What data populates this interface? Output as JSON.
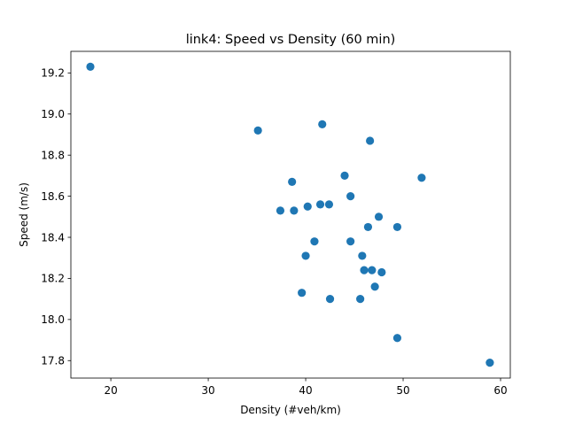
{
  "chart_data": {
    "type": "scatter",
    "title": "link4: Speed vs Density (60 min)",
    "xlabel": "Density (#veh/km)",
    "ylabel": "Speed (m/s)",
    "xlim": [
      15.9,
      61.0
    ],
    "ylim": [
      17.715,
      19.305
    ],
    "xticks": [
      20,
      30,
      40,
      50,
      60
    ],
    "yticks": [
      17.8,
      18.0,
      18.2,
      18.4,
      18.6,
      18.8,
      19.0,
      19.2
    ],
    "grid": false,
    "marker_color": "#1f77b4",
    "series": [
      {
        "points": [
          {
            "x": 17.9,
            "y": 19.23
          },
          {
            "x": 35.1,
            "y": 18.92
          },
          {
            "x": 41.7,
            "y": 18.95
          },
          {
            "x": 46.6,
            "y": 18.87
          },
          {
            "x": 44.0,
            "y": 18.7
          },
          {
            "x": 38.6,
            "y": 18.67
          },
          {
            "x": 51.9,
            "y": 18.69
          },
          {
            "x": 44.6,
            "y": 18.6
          },
          {
            "x": 37.4,
            "y": 18.53
          },
          {
            "x": 38.8,
            "y": 18.53
          },
          {
            "x": 40.2,
            "y": 18.55
          },
          {
            "x": 41.5,
            "y": 18.56
          },
          {
            "x": 42.4,
            "y": 18.56
          },
          {
            "x": 47.5,
            "y": 18.5
          },
          {
            "x": 46.4,
            "y": 18.45
          },
          {
            "x": 49.4,
            "y": 18.45
          },
          {
            "x": 40.9,
            "y": 18.38
          },
          {
            "x": 44.6,
            "y": 18.38
          },
          {
            "x": 40.0,
            "y": 18.31
          },
          {
            "x": 45.8,
            "y": 18.31
          },
          {
            "x": 46.0,
            "y": 18.24
          },
          {
            "x": 46.8,
            "y": 18.24
          },
          {
            "x": 47.8,
            "y": 18.23
          },
          {
            "x": 47.1,
            "y": 18.16
          },
          {
            "x": 39.6,
            "y": 18.13
          },
          {
            "x": 42.5,
            "y": 18.1
          },
          {
            "x": 45.6,
            "y": 18.1
          },
          {
            "x": 49.4,
            "y": 17.91
          },
          {
            "x": 58.9,
            "y": 17.79
          }
        ]
      }
    ]
  }
}
